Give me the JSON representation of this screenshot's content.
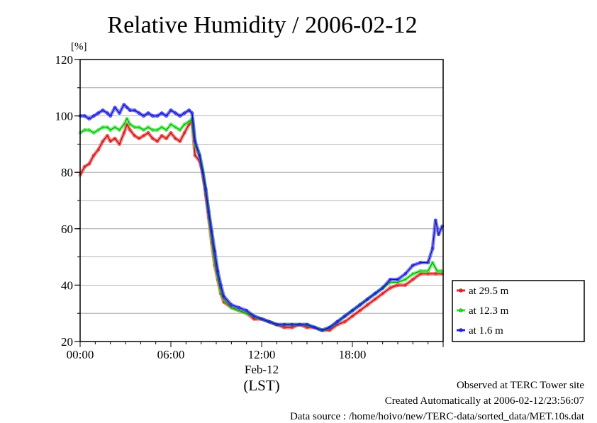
{
  "chart_data": {
    "type": "line",
    "title": "Relative Humidity / 2006-02-12",
    "yunit": "[%]",
    "ylim": [
      20,
      120
    ],
    "yticks": [
      20,
      40,
      60,
      80,
      100,
      120
    ],
    "xlim": [
      0,
      24
    ],
    "xtick_labels": [
      {
        "t": 0,
        "label": "00:00"
      },
      {
        "t": 6,
        "label": "06:00"
      },
      {
        "t": 12,
        "label": "12:00"
      },
      {
        "t": 18,
        "label": "18:00"
      }
    ],
    "x_date_label": "Feb-12",
    "x_tz_label": "(LST)",
    "grid": true,
    "legend_position": "right-bottom",
    "series": [
      {
        "name": "at 29.5 m",
        "color": "#ff2020",
        "points": [
          [
            0.0,
            79
          ],
          [
            0.3,
            82
          ],
          [
            0.6,
            83
          ],
          [
            0.9,
            86
          ],
          [
            1.2,
            88
          ],
          [
            1.5,
            91
          ],
          [
            1.8,
            93
          ],
          [
            2.0,
            91
          ],
          [
            2.3,
            92
          ],
          [
            2.6,
            90
          ],
          [
            2.9,
            94
          ],
          [
            3.1,
            97
          ],
          [
            3.3,
            95
          ],
          [
            3.6,
            93
          ],
          [
            3.9,
            92
          ],
          [
            4.2,
            93
          ],
          [
            4.5,
            94
          ],
          [
            4.8,
            92
          ],
          [
            5.1,
            91
          ],
          [
            5.4,
            93
          ],
          [
            5.7,
            92
          ],
          [
            6.0,
            94
          ],
          [
            6.3,
            92
          ],
          [
            6.6,
            91
          ],
          [
            6.9,
            94
          ],
          [
            7.2,
            97
          ],
          [
            7.4,
            98
          ],
          [
            7.6,
            86
          ],
          [
            7.9,
            84
          ],
          [
            8.1,
            80
          ],
          [
            8.3,
            72
          ],
          [
            8.5,
            64
          ],
          [
            8.7,
            55
          ],
          [
            8.9,
            47
          ],
          [
            9.1,
            42
          ],
          [
            9.3,
            37
          ],
          [
            9.5,
            34
          ],
          [
            10.0,
            32
          ],
          [
            10.5,
            31
          ],
          [
            11.0,
            30
          ],
          [
            11.5,
            28
          ],
          [
            12.0,
            28
          ],
          [
            12.5,
            27
          ],
          [
            13.0,
            26
          ],
          [
            13.5,
            25
          ],
          [
            14.0,
            25
          ],
          [
            14.5,
            26
          ],
          [
            15.0,
            25
          ],
          [
            15.5,
            25
          ],
          [
            16.0,
            24
          ],
          [
            16.5,
            24
          ],
          [
            17.0,
            26
          ],
          [
            17.5,
            27
          ],
          [
            18.0,
            29
          ],
          [
            18.5,
            31
          ],
          [
            19.0,
            33
          ],
          [
            19.5,
            35
          ],
          [
            20.0,
            37
          ],
          [
            20.5,
            39
          ],
          [
            21.0,
            40
          ],
          [
            21.5,
            40
          ],
          [
            22.0,
            42
          ],
          [
            22.5,
            44
          ],
          [
            23.0,
            44
          ],
          [
            23.5,
            44
          ],
          [
            23.95,
            44
          ]
        ]
      },
      {
        "name": "at 12.3 m",
        "color": "#20ee20",
        "points": [
          [
            0.0,
            94
          ],
          [
            0.3,
            95
          ],
          [
            0.6,
            95
          ],
          [
            0.9,
            94
          ],
          [
            1.2,
            95
          ],
          [
            1.5,
            96
          ],
          [
            1.8,
            96
          ],
          [
            2.0,
            95
          ],
          [
            2.3,
            96
          ],
          [
            2.6,
            95
          ],
          [
            2.9,
            97
          ],
          [
            3.1,
            99
          ],
          [
            3.3,
            97
          ],
          [
            3.6,
            96
          ],
          [
            3.9,
            96
          ],
          [
            4.2,
            95
          ],
          [
            4.5,
            96
          ],
          [
            4.8,
            95
          ],
          [
            5.1,
            95
          ],
          [
            5.4,
            96
          ],
          [
            5.7,
            95
          ],
          [
            6.0,
            97
          ],
          [
            6.3,
            96
          ],
          [
            6.6,
            95
          ],
          [
            6.9,
            97
          ],
          [
            7.2,
            98
          ],
          [
            7.4,
            99
          ],
          [
            7.6,
            90
          ],
          [
            7.9,
            86
          ],
          [
            8.1,
            81
          ],
          [
            8.3,
            74
          ],
          [
            8.5,
            66
          ],
          [
            8.7,
            57
          ],
          [
            8.9,
            49
          ],
          [
            9.1,
            43
          ],
          [
            9.3,
            38
          ],
          [
            9.5,
            35
          ],
          [
            10.0,
            32
          ],
          [
            10.5,
            31
          ],
          [
            11.0,
            30
          ],
          [
            11.5,
            29
          ],
          [
            12.0,
            28
          ],
          [
            12.5,
            27
          ],
          [
            13.0,
            26
          ],
          [
            13.5,
            26
          ],
          [
            14.0,
            26
          ],
          [
            14.5,
            26
          ],
          [
            15.0,
            26
          ],
          [
            15.5,
            25
          ],
          [
            16.0,
            24
          ],
          [
            16.5,
            25
          ],
          [
            17.0,
            27
          ],
          [
            17.5,
            29
          ],
          [
            18.0,
            31
          ],
          [
            18.5,
            33
          ],
          [
            19.0,
            35
          ],
          [
            19.5,
            37
          ],
          [
            20.0,
            39
          ],
          [
            20.5,
            41
          ],
          [
            21.0,
            41
          ],
          [
            21.5,
            42
          ],
          [
            22.0,
            44
          ],
          [
            22.5,
            45
          ],
          [
            23.0,
            45
          ],
          [
            23.3,
            48
          ],
          [
            23.6,
            45
          ],
          [
            23.95,
            45
          ]
        ]
      },
      {
        "name": "at 1.6 m",
        "color": "#2020ff",
        "points": [
          [
            0.0,
            100
          ],
          [
            0.3,
            100
          ],
          [
            0.6,
            99
          ],
          [
            0.9,
            100
          ],
          [
            1.2,
            101
          ],
          [
            1.5,
            102
          ],
          [
            1.8,
            101
          ],
          [
            2.0,
            100
          ],
          [
            2.3,
            103
          ],
          [
            2.6,
            101
          ],
          [
            2.9,
            104
          ],
          [
            3.1,
            103
          ],
          [
            3.3,
            102
          ],
          [
            3.6,
            102
          ],
          [
            3.9,
            101
          ],
          [
            4.2,
            100
          ],
          [
            4.5,
            101
          ],
          [
            4.8,
            100
          ],
          [
            5.1,
            100
          ],
          [
            5.4,
            101
          ],
          [
            5.7,
            100
          ],
          [
            6.0,
            102
          ],
          [
            6.3,
            101
          ],
          [
            6.6,
            100
          ],
          [
            6.9,
            101
          ],
          [
            7.2,
            102
          ],
          [
            7.4,
            101
          ],
          [
            7.6,
            91
          ],
          [
            7.9,
            86
          ],
          [
            8.1,
            80
          ],
          [
            8.3,
            74
          ],
          [
            8.5,
            66
          ],
          [
            8.7,
            59
          ],
          [
            8.9,
            52
          ],
          [
            9.1,
            45
          ],
          [
            9.3,
            40
          ],
          [
            9.5,
            36
          ],
          [
            10.0,
            33
          ],
          [
            10.5,
            32
          ],
          [
            11.0,
            31
          ],
          [
            11.5,
            29
          ],
          [
            12.0,
            28
          ],
          [
            12.5,
            27
          ],
          [
            13.0,
            26
          ],
          [
            13.5,
            26
          ],
          [
            14.0,
            26
          ],
          [
            14.5,
            26
          ],
          [
            15.0,
            26
          ],
          [
            15.5,
            25
          ],
          [
            16.0,
            24
          ],
          [
            16.5,
            25
          ],
          [
            17.0,
            27
          ],
          [
            17.5,
            29
          ],
          [
            18.0,
            31
          ],
          [
            18.5,
            33
          ],
          [
            19.0,
            35
          ],
          [
            19.5,
            37
          ],
          [
            20.0,
            39
          ],
          [
            20.5,
            42
          ],
          [
            21.0,
            42
          ],
          [
            21.5,
            44
          ],
          [
            22.0,
            47
          ],
          [
            22.5,
            48
          ],
          [
            23.0,
            48
          ],
          [
            23.3,
            53
          ],
          [
            23.5,
            63
          ],
          [
            23.7,
            58
          ],
          [
            23.95,
            61
          ]
        ]
      }
    ]
  },
  "footer": {
    "line1": "Observed at TERC Tower site",
    "line2": "Created Automatically at 2006-02-12/23:56:07",
    "line3": "Data source : /home/hoivo/new/TERC-data/sorted_data/MET.10s.dat"
  }
}
